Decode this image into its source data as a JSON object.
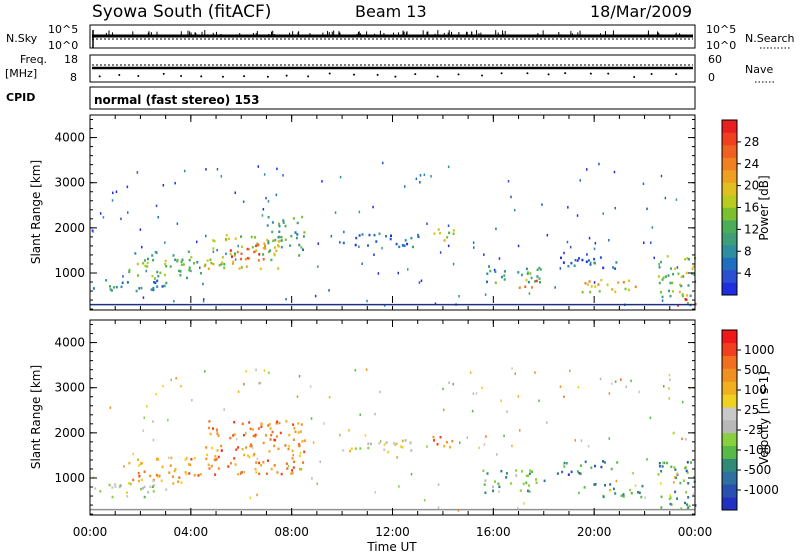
{
  "header": {
    "station": "Syowa South (fitACF)",
    "beam": "Beam 13",
    "date": "18/Mar/2009"
  },
  "panels": {
    "nsky": {
      "left_label": "N.Sky",
      "right_label": "N.Search",
      "ticks_left": [
        "10^5",
        "10^0"
      ],
      "ticks_right": [
        "10^5",
        "10^0"
      ]
    },
    "freq": {
      "left_label_line1": "Freq.",
      "left_label_line2": "[MHz]",
      "right_label": "Nave",
      "ticks_left": [
        "18",
        "8"
      ],
      "ticks_right": [
        "60",
        "0"
      ]
    },
    "cpid": {
      "label": "CPID",
      "text": "normal (fast stereo) 153"
    }
  },
  "chart_data": [
    {
      "type": "heatmap",
      "title": "",
      "xlabel": "",
      "ylabel": "Slant Range [km]",
      "ylim": [
        180,
        4500
      ],
      "x_ticks": [
        "00:00",
        "04:00",
        "08:00",
        "12:00",
        "16:00",
        "20:00",
        "00:00"
      ],
      "y_ticks": [
        1000,
        2000,
        3000,
        4000
      ],
      "colorbar": {
        "label": "Power [dB]",
        "range": [
          0,
          32
        ],
        "ticks": [
          4,
          8,
          12,
          16,
          20,
          24,
          28
        ],
        "colors": [
          "#1f2fe0",
          "#2a4fd0",
          "#1f6ec0",
          "#2e8ea0",
          "#3e9e78",
          "#4aae58",
          "#7cc030",
          "#b8cc20",
          "#e0c020",
          "#f0a020",
          "#f08020",
          "#f06020",
          "#f04020",
          "#e82020"
        ]
      },
      "blobs": [
        {
          "t0": 0.1,
          "t1": 3.0,
          "r0": 600,
          "r1": 900,
          "level": 0.25
        },
        {
          "t0": 1.5,
          "t1": 4.5,
          "r0": 900,
          "r1": 1500,
          "level": 0.4
        },
        {
          "t0": 4.5,
          "t1": 7.5,
          "r0": 1100,
          "r1": 1900,
          "level": 0.55
        },
        {
          "t0": 5.5,
          "t1": 7.0,
          "r0": 1300,
          "r1": 1700,
          "level": 0.85
        },
        {
          "t0": 7.0,
          "t1": 8.5,
          "r0": 1400,
          "r1": 2300,
          "level": 0.35
        },
        {
          "t0": 10.0,
          "t1": 13.0,
          "r0": 1600,
          "r1": 1900,
          "level": 0.15
        },
        {
          "t0": 13.5,
          "t1": 14.5,
          "r0": 1700,
          "r1": 2000,
          "level": 0.5
        },
        {
          "t0": 15.5,
          "t1": 18.0,
          "r0": 800,
          "r1": 1200,
          "level": 0.3
        },
        {
          "t0": 17.0,
          "t1": 18.0,
          "r0": 700,
          "r1": 900,
          "level": 0.75
        },
        {
          "t0": 18.5,
          "t1": 21.0,
          "r0": 1100,
          "r1": 1400,
          "level": 0.2
        },
        {
          "t0": 19.5,
          "t1": 22.0,
          "r0": 600,
          "r1": 900,
          "level": 0.6
        },
        {
          "t0": 22.5,
          "t1": 24.0,
          "r0": 300,
          "r1": 1400,
          "level": 0.45
        },
        {
          "t0": 23.2,
          "t1": 24.0,
          "r0": 300,
          "r1": 500,
          "level": 0.95
        }
      ]
    },
    {
      "type": "heatmap",
      "title": "",
      "xlabel": "Time UT",
      "ylabel": "Slant Range [km]",
      "ylim": [
        180,
        4500
      ],
      "x_ticks": [
        "00:00",
        "04:00",
        "08:00",
        "12:00",
        "16:00",
        "20:00",
        "00:00"
      ],
      "y_ticks": [
        1000,
        2000,
        3000,
        4000
      ],
      "colorbar": {
        "label": "Velocity [m s-1]",
        "ticks": [
          "1000",
          "500",
          "100",
          "25",
          "-25",
          "-100",
          "-500",
          "-1000"
        ],
        "colors": [
          "#2030c0",
          "#2850b0",
          "#2e70a0",
          "#308a78",
          "#58b848",
          "#88d040",
          "#b8b8b8",
          "#c8c8c8",
          "#f0d020",
          "#f0b020",
          "#f09020",
          "#f07020",
          "#f04020",
          "#f01818"
        ]
      },
      "blobs": [
        {
          "t0": 0.1,
          "t1": 3.0,
          "r0": 600,
          "r1": 900,
          "level": 0.45
        },
        {
          "t0": 1.5,
          "t1": 4.5,
          "r0": 900,
          "r1": 1500,
          "level": 0.72
        },
        {
          "t0": 4.5,
          "t1": 8.5,
          "r0": 1100,
          "r1": 2300,
          "level": 0.78
        },
        {
          "t0": 10.0,
          "t1": 13.0,
          "r0": 1600,
          "r1": 1900,
          "level": 0.55
        },
        {
          "t0": 13.5,
          "t1": 14.5,
          "r0": 1700,
          "r1": 2000,
          "level": 0.78
        },
        {
          "t0": 15.5,
          "t1": 18.0,
          "r0": 700,
          "r1": 1200,
          "level": 0.32
        },
        {
          "t0": 18.5,
          "t1": 21.0,
          "r0": 1100,
          "r1": 1400,
          "level": 0.2
        },
        {
          "t0": 19.5,
          "t1": 22.0,
          "r0": 600,
          "r1": 900,
          "level": 0.25
        },
        {
          "t0": 22.5,
          "t1": 24.0,
          "r0": 300,
          "r1": 1400,
          "level": 0.28
        }
      ]
    }
  ]
}
